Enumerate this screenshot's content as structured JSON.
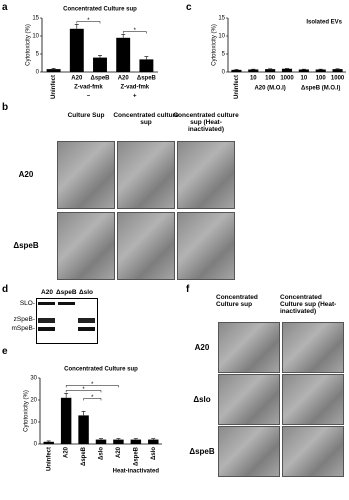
{
  "panel_letters": [
    "a",
    "b",
    "c",
    "d",
    "e",
    "f"
  ],
  "chart_data": [
    {
      "type": "bar",
      "title": "Concentrated Culture sup",
      "y_label": "Cytotoxicity (%)",
      "categories": [
        "Uninfect",
        "A20",
        "ΔspeB",
        "A20",
        "ΔspeB"
      ],
      "values": [
        0.8,
        12,
        4,
        9.5,
        3.5
      ],
      "errors": [
        0.2,
        1.2,
        0.6,
        0.9,
        0.8
      ],
      "color": "#000000",
      "ylim": [
        0,
        15
      ],
      "yticks": [
        0,
        5,
        10,
        15
      ],
      "group_labels": [
        "Z-vad-fmk",
        "Z-vad-fmk"
      ],
      "group_signs": [
        "−",
        "+"
      ],
      "annotations": [
        "*",
        "*"
      ]
    },
    {
      "type": "bar",
      "title": "Isolated EVs",
      "y_label": "Cytotoxicity (%)",
      "categories": [
        "Uninfect",
        "10",
        "100",
        "1000",
        "10",
        "100",
        "1000"
      ],
      "values": [
        0.6,
        0.7,
        0.8,
        0.9,
        0.7,
        0.7,
        0.8
      ],
      "errors": [
        0.1,
        0.1,
        0.1,
        0.1,
        0.1,
        0.1,
        0.1
      ],
      "color": "#000000",
      "ylim": [
        0,
        15
      ],
      "yticks": [
        0,
        5,
        10,
        15
      ],
      "group_labels": [
        "A20 (M.O.I)",
        "ΔspeB (M.O.I)"
      ]
    },
    {
      "type": "bar",
      "title": "Concentrated Culture sup",
      "y_label": "Cytotoxicity (%)",
      "categories": [
        "Uninfect",
        "A20",
        "ΔspeB",
        "Δslo",
        "A20",
        "ΔspeB",
        "Δslo"
      ],
      "values": [
        1,
        21,
        13,
        2,
        2,
        2,
        2
      ],
      "errors": [
        0.4,
        2,
        1.8,
        0.4,
        0.4,
        0.4,
        0.4
      ],
      "color": "#000000",
      "ylim": [
        0,
        30
      ],
      "yticks": [
        0,
        10,
        20,
        30
      ],
      "group_labels": [
        "Heat-inactivated"
      ],
      "annotations": [
        "*",
        "*",
        "*"
      ]
    }
  ],
  "panel_b": {
    "columns": [
      "Culture Sup",
      "Concentrated culture sup",
      "Concentrated culture sup (Heat-inactivated)"
    ],
    "rows": [
      "A20",
      "ΔspeB"
    ]
  },
  "panel_d": {
    "lanes": [
      "A20",
      "ΔspeB",
      "Δslo"
    ],
    "bands": [
      "SLO-",
      "zSpeB-",
      "mSpeB-"
    ]
  },
  "panel_f": {
    "columns": [
      "Concentrated Culture sup",
      "Concentrated Culture sup (Heat-inactivated)"
    ],
    "rows": [
      "A20",
      "Δslo",
      "ΔspeB"
    ]
  }
}
